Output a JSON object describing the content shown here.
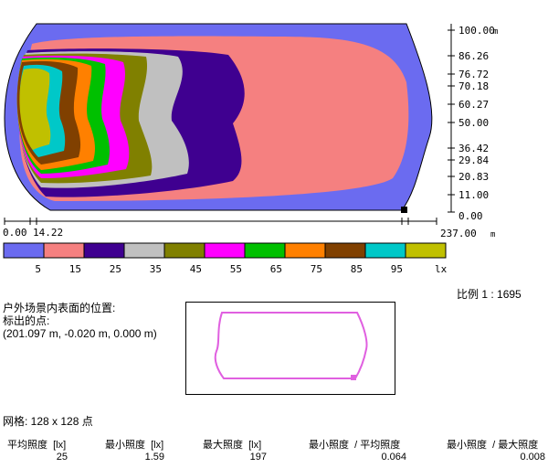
{
  "axis": {
    "y_ticks": [
      "100.00",
      "86.26",
      "76.72",
      "70.18",
      "60.27",
      "50.00",
      "36.42",
      "29.84",
      "20.83",
      "11.00",
      "0.00"
    ],
    "y_unit": "m",
    "x_ticks": [
      "0.00",
      "14.22"
    ],
    "x_end": "237.00",
    "x_unit": "m"
  },
  "legend": {
    "colors": [
      "#6b6bf0",
      "#f58080",
      "#3f0090",
      "#c0c0c0",
      "#808000",
      "#ff00ff",
      "#00c000",
      "#ff8000",
      "#804000",
      "#00c8c8",
      "#c0c000"
    ],
    "labels": [
      "5",
      "15",
      "25",
      "35",
      "45",
      "55",
      "65",
      "75",
      "85",
      "95"
    ],
    "unit": "lx"
  },
  "scale": {
    "label": "比例",
    "value": "1 : 1695"
  },
  "position": {
    "line1": "户外场景内表面的位置:",
    "line2": "标出的点:",
    "line3": "(201.097 m, -0.020 m, 0.000 m)"
  },
  "grid_text": "网格: 128 x 128 点",
  "stats": {
    "headers": [
      "平均照度  [lx]",
      "最小照度  [lx]",
      "最大照度  [lx]",
      "最小照度  / 平均照度",
      "最小照度  / 最大照度"
    ],
    "values": [
      "25",
      "1.59",
      "197",
      "0.064",
      "0.008"
    ]
  }
}
